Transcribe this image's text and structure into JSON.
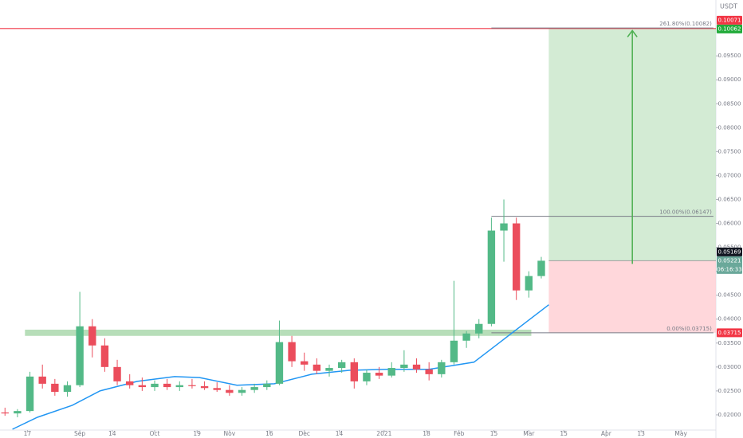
{
  "chart_data": {
    "type": "candlestick",
    "currency": "USDT",
    "up_color": "#53b987",
    "down_color": "#eb4d5c",
    "grid": false,
    "ylim": [
      0.01683,
      0.10667
    ],
    "yticks": [
      {
        "value": 0.02,
        "label": "0.02000"
      },
      {
        "value": 0.025,
        "label": "0.02500"
      },
      {
        "value": 0.03,
        "label": "0.03000"
      },
      {
        "value": 0.035,
        "label": "0.03500"
      },
      {
        "value": 0.04,
        "label": "0.04000"
      },
      {
        "value": 0.045,
        "label": "0.04500"
      },
      {
        "value": 0.05,
        "label": "0.05000"
      },
      {
        "value": 0.055,
        "label": "0.05500"
      },
      {
        "value": 0.06,
        "label": "0.06000"
      },
      {
        "value": 0.065,
        "label": "0.06500"
      },
      {
        "value": 0.07,
        "label": "0.07000"
      },
      {
        "value": 0.075,
        "label": "0.07500"
      },
      {
        "value": 0.08,
        "label": "0.08000"
      },
      {
        "value": 0.085,
        "label": "0.08500"
      },
      {
        "value": 0.09,
        "label": "0.09000"
      },
      {
        "value": 0.095,
        "label": "0.09500"
      }
    ],
    "xlim": [
      0,
      287
    ],
    "xticks": [
      {
        "value": 11,
        "label": "17"
      },
      {
        "value": 32,
        "label": "Sep"
      },
      {
        "value": 45,
        "label": "14"
      },
      {
        "value": 62,
        "label": "Oct"
      },
      {
        "value": 79,
        "label": "19"
      },
      {
        "value": 92,
        "label": "Nov"
      },
      {
        "value": 108,
        "label": "16"
      },
      {
        "value": 122,
        "label": "Dec"
      },
      {
        "value": 136,
        "label": "14"
      },
      {
        "value": 154,
        "label": "2021"
      },
      {
        "value": 171,
        "label": "18"
      },
      {
        "value": 184,
        "label": "Feb"
      },
      {
        "value": 198,
        "label": "15"
      },
      {
        "value": 212,
        "label": "Mar"
      },
      {
        "value": 226,
        "label": "15"
      },
      {
        "value": 243,
        "label": "Apr"
      },
      {
        "value": 257,
        "label": "13"
      },
      {
        "value": 273,
        "label": "May"
      }
    ],
    "x": [
      2,
      7,
      12,
      17,
      22,
      27,
      32,
      37,
      42,
      47,
      52,
      57,
      62,
      67,
      72,
      77,
      82,
      87,
      92,
      97,
      102,
      107,
      112,
      117,
      122,
      127,
      132,
      137,
      142,
      147,
      152,
      157,
      162,
      167,
      172,
      177,
      182,
      187,
      192,
      197,
      202,
      207,
      212,
      217
    ],
    "open": [
      0.0205,
      0.0203,
      0.0208,
      0.028,
      0.0265,
      0.0248,
      0.0262,
      0.0385,
      0.0345,
      0.03,
      0.027,
      0.0262,
      0.0258,
      0.0265,
      0.0258,
      0.0262,
      0.026,
      0.0256,
      0.0252,
      0.0246,
      0.0252,
      0.0258,
      0.0265,
      0.0352,
      0.0312,
      0.0305,
      0.0292,
      0.0298,
      0.031,
      0.027,
      0.0288,
      0.0282,
      0.0298,
      0.0305,
      0.0295,
      0.0285,
      0.031,
      0.0355,
      0.037,
      0.039,
      0.0585,
      0.06,
      0.046,
      0.049
    ],
    "high": [
      0.0215,
      0.0212,
      0.029,
      0.0305,
      0.0275,
      0.027,
      0.0457,
      0.04,
      0.036,
      0.0315,
      0.0285,
      0.0278,
      0.0272,
      0.0275,
      0.027,
      0.0275,
      0.027,
      0.0268,
      0.0262,
      0.0258,
      0.0265,
      0.0272,
      0.0397,
      0.0365,
      0.033,
      0.0318,
      0.0305,
      0.0315,
      0.0318,
      0.0295,
      0.03,
      0.031,
      0.0335,
      0.0318,
      0.031,
      0.0315,
      0.048,
      0.0375,
      0.04,
      0.0612,
      0.065,
      0.0612,
      0.05,
      0.053
    ],
    "low": [
      0.0198,
      0.0195,
      0.0205,
      0.0255,
      0.024,
      0.0238,
      0.0258,
      0.032,
      0.029,
      0.0262,
      0.0255,
      0.025,
      0.025,
      0.0252,
      0.025,
      0.0255,
      0.0252,
      0.0248,
      0.024,
      0.024,
      0.0246,
      0.0252,
      0.0262,
      0.03,
      0.0292,
      0.0285,
      0.028,
      0.0288,
      0.0255,
      0.0262,
      0.0275,
      0.0278,
      0.029,
      0.0288,
      0.0272,
      0.0278,
      0.0305,
      0.034,
      0.036,
      0.0385,
      0.052,
      0.044,
      0.0445,
      0.0485
    ],
    "close": [
      0.0203,
      0.0208,
      0.028,
      0.0265,
      0.0248,
      0.0262,
      0.0385,
      0.0345,
      0.03,
      0.027,
      0.0262,
      0.0258,
      0.0265,
      0.0258,
      0.0262,
      0.026,
      0.0256,
      0.0252,
      0.0246,
      0.0252,
      0.0258,
      0.0265,
      0.0352,
      0.0312,
      0.0305,
      0.0292,
      0.0298,
      0.031,
      0.027,
      0.0288,
      0.0282,
      0.0298,
      0.0305,
      0.0295,
      0.0285,
      0.031,
      0.0355,
      0.037,
      0.039,
      0.0585,
      0.06,
      0.046,
      0.049,
      0.0522
    ],
    "moving_average": {
      "color": "#2196f3",
      "x": [
        5,
        15,
        29,
        40,
        55,
        70,
        80,
        95,
        110,
        125,
        140,
        155,
        172,
        190,
        200,
        210,
        220
      ],
      "values": [
        0.017,
        0.0195,
        0.022,
        0.025,
        0.027,
        0.028,
        0.0278,
        0.0262,
        0.0265,
        0.0285,
        0.0293,
        0.0295,
        0.0295,
        0.031,
        0.035,
        0.039,
        0.043
      ]
    },
    "zone": {
      "low": 0.0365,
      "high": 0.0378,
      "x_start": 10,
      "x_end": 213,
      "color": "#a5d6a7"
    },
    "horizontal_line": {
      "value": 0.10071,
      "color": "#f23645"
    },
    "fib": {
      "x_start": 197,
      "x_end": 286,
      "color": "#787b86",
      "levels": [
        {
          "value": 0.10082,
          "label": "261.80%(0.10082)"
        },
        {
          "value": 0.06147,
          "label": "100.00%(0.06147)"
        },
        {
          "value": 0.03715,
          "label": "0.00%(0.03715)"
        }
      ]
    },
    "position": {
      "entry": 0.05221,
      "target": 0.10062,
      "stop": 0.03715,
      "x_start": 220,
      "x_end": 287,
      "profit_color": "#c8e6c9",
      "loss_color": "#ffcdd2",
      "arrow_color": "#4caf50"
    },
    "price_tags": [
      {
        "value": 0.10062,
        "color": "#22ab3a"
      },
      {
        "value": 0.10071,
        "color": "#f23645"
      },
      {
        "value": 0.05221,
        "color": "#6aa89a",
        "countdown": "06:16:33"
      },
      {
        "value": 0.05169,
        "color": "#131722"
      },
      {
        "value": 0.03715,
        "color": "#f23645"
      }
    ]
  }
}
